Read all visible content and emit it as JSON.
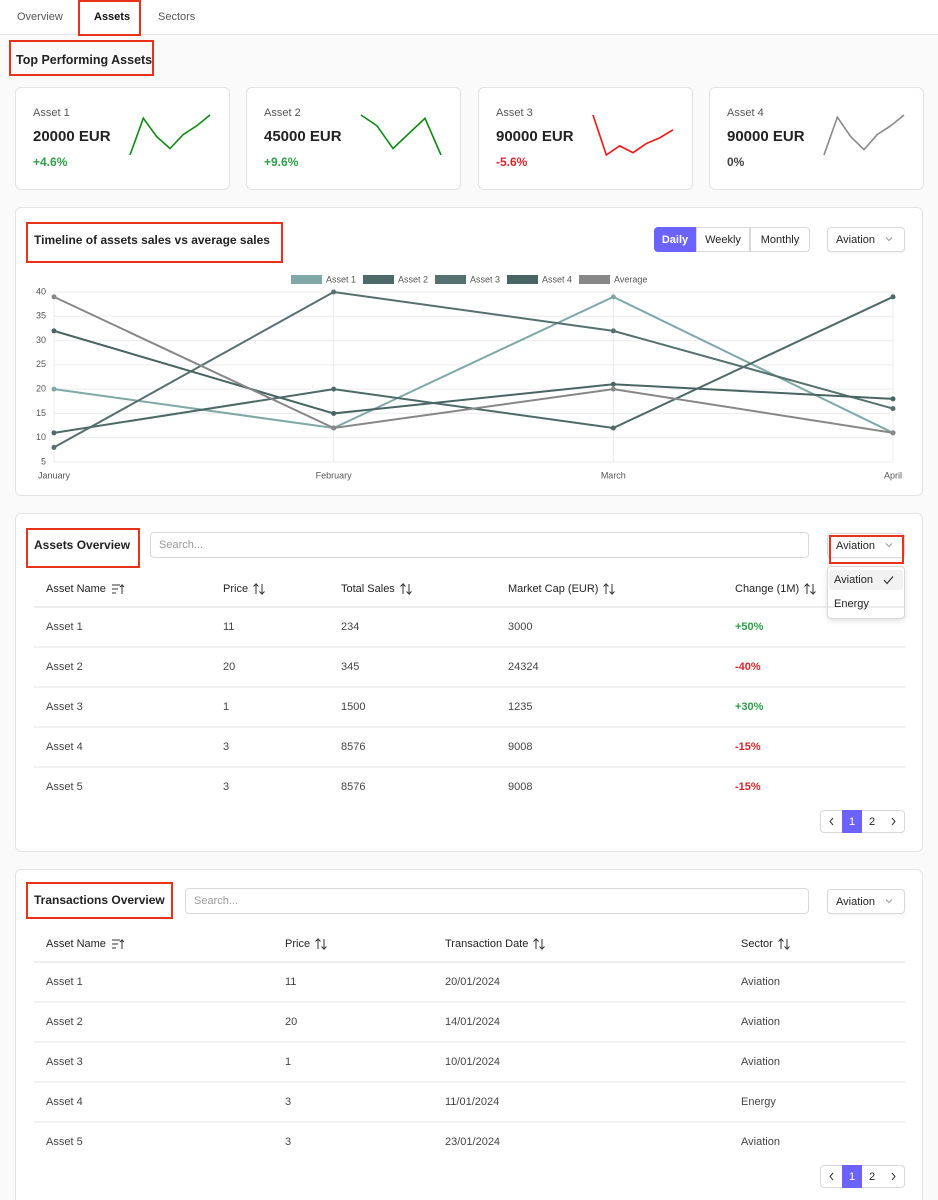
{
  "tabs": {
    "items": [
      "Overview",
      "Assets",
      "Sectors"
    ],
    "active": 1
  },
  "top_assets": {
    "title": "Top Performing Assets",
    "cards": [
      {
        "name": "Asset 1",
        "amount": "20000 EUR",
        "change": "+4.6%",
        "change_color": "#2e9e4a",
        "spark_color": "#0e8a14",
        "sparkline": [
          8,
          42,
          25,
          14,
          27,
          35,
          45
        ]
      },
      {
        "name": "Asset 2",
        "amount": "45000 EUR",
        "change": "+9.6%",
        "change_color": "#2e9e4a",
        "spark_color": "#0e8a14",
        "sparkline": [
          45,
          35,
          14,
          28,
          42,
          8
        ]
      },
      {
        "name": "Asset 3",
        "amount": "90000 EUR",
        "change": "-5.6%",
        "change_color": "#d6262b",
        "spark_color": "#f21414",
        "sparkline": [
          40,
          5,
          13,
          7,
          15,
          20,
          27
        ]
      },
      {
        "name": "Asset 4",
        "amount": "90000 EUR",
        "change": "0%",
        "change_color": "#444444",
        "spark_color": "#888888",
        "sparkline": [
          8,
          43,
          25,
          13,
          27,
          35,
          45
        ]
      }
    ]
  },
  "chart_controls": {
    "periods": [
      "Daily",
      "Weekly",
      "Monthly"
    ],
    "active": 0,
    "sector": "Aviation"
  },
  "chart_data": {
    "type": "line",
    "title": "Timeline of assets sales vs average sales",
    "categories": [
      "January",
      "February",
      "March",
      "April"
    ],
    "series": [
      {
        "name": "Asset 1",
        "color": "#7fa8a6",
        "values": [
          20,
          12,
          39,
          11
        ]
      },
      {
        "name": "Asset 2",
        "color": "#4d6a68",
        "values": [
          11,
          20,
          12,
          39
        ]
      },
      {
        "name": "Asset 3",
        "color": "#55706f",
        "values": [
          8,
          40,
          32,
          16
        ]
      },
      {
        "name": "Asset 4",
        "color": "#486563",
        "values": [
          32,
          15,
          21,
          18
        ]
      },
      {
        "name": "Average",
        "color": "#878787",
        "values": [
          39,
          12,
          20,
          11
        ]
      }
    ],
    "ylim": [
      5,
      40
    ],
    "yticks": [
      5,
      10,
      15,
      20,
      25,
      30,
      35,
      40
    ],
    "grid": true,
    "legend": "top"
  },
  "assets_table": {
    "title": "Assets Overview",
    "search_placeholder": "Search...",
    "sector": "Aviation",
    "sector_options": [
      "Aviation",
      "Energy"
    ],
    "selected_option": 0,
    "columns": [
      "Asset Name",
      "Price",
      "Total Sales",
      "Market Cap (EUR)",
      "Change (1M)"
    ],
    "rows": [
      [
        "Asset 1",
        11,
        234,
        3000,
        "+50%"
      ],
      [
        "Asset 2",
        20,
        345,
        24324,
        "-40%"
      ],
      [
        "Asset 3",
        1,
        1500,
        1235,
        "+30%"
      ],
      [
        "Asset 4",
        3,
        8576,
        9008,
        "-15%"
      ],
      [
        "Asset 5",
        3,
        8576,
        9008,
        "-15%"
      ]
    ],
    "pages": [
      1,
      2
    ],
    "active_page": 0
  },
  "transactions_table": {
    "title": "Transactions Overview",
    "search_placeholder": "Search...",
    "sector": "Aviation",
    "columns": [
      "Asset Name",
      "Price",
      "Transaction Date",
      "Sector"
    ],
    "rows": [
      [
        "Asset 1",
        11,
        "20/01/2024",
        "Aviation"
      ],
      [
        "Asset 2",
        20,
        "14/01/2024",
        "Aviation"
      ],
      [
        "Asset 3",
        1,
        "10/01/2024",
        "Aviation"
      ],
      [
        "Asset 4",
        3,
        "11/01/2024",
        "Energy"
      ],
      [
        "Asset 5",
        3,
        "23/01/2024",
        "Aviation"
      ]
    ],
    "pages": [
      1,
      2
    ],
    "active_page": 0
  }
}
